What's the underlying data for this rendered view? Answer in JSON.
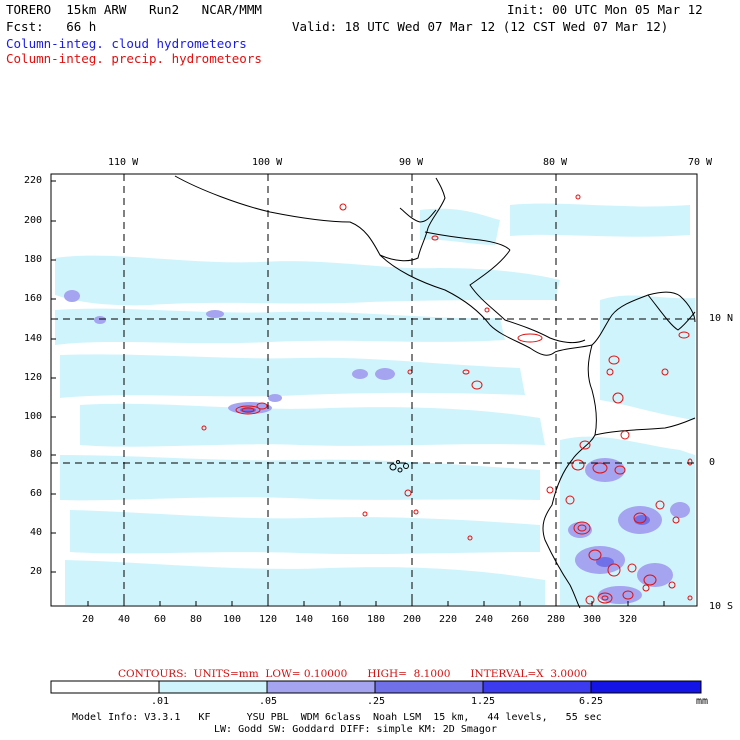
{
  "header": {
    "model": "TORERO  15km ARW   Run2   NCAR/MMM",
    "fcst": "Fcst:   66 h",
    "init": "Init: 00 UTC Mon 05 Mar 12",
    "valid": "Valid: 18 UTC Wed 07 Mar 12 (12 CST Wed 07 Mar 12)",
    "field1": "Column-integ. cloud hydrometeors",
    "field2": "Column-integ. precip. hydrometeors"
  },
  "map": {
    "lon_labels": [
      "110 W",
      "100 W",
      "90 W",
      "80 W",
      "70 W"
    ],
    "lat_labels": [
      "10 N",
      "0",
      "10 S"
    ],
    "x_ticks": [
      "20",
      "40",
      "60",
      "80",
      "100",
      "120",
      "140",
      "160",
      "180",
      "200",
      "220",
      "240",
      "260",
      "280",
      "300",
      "320"
    ],
    "y_ticks": [
      "220",
      "200",
      "180",
      "160",
      "140",
      "120",
      "100",
      "80",
      "60",
      "40",
      "20"
    ],
    "colors": {
      "cloud_light": "#d0f4fc",
      "cloud_mid": "#a4a4f0",
      "precip_contour": "#e01010",
      "coast": "#000000"
    }
  },
  "contour_note": "CONTOURS:  UNITS=mm  LOW= 0.10000      HIGH=  8.1000      INTERVAL=X  3.0000",
  "colorbar": {
    "labels": [
      ".01",
      ".05",
      ".25",
      "1.25",
      "6.25"
    ],
    "units": "mm",
    "colors": [
      "#ffffff",
      "#d0f4fc",
      "#a4a4f0",
      "#7070e8",
      "#3c3cee",
      "#1414e6"
    ]
  },
  "footer": {
    "line1": "Model Info: V3.3.1   KF      YSU PBL  WDM 6class  Noah LSM  15 km,   44 levels,   55 sec",
    "line2": "LW: Godd SW: Goddard DIFF: simple KM: 2D Smagor"
  }
}
